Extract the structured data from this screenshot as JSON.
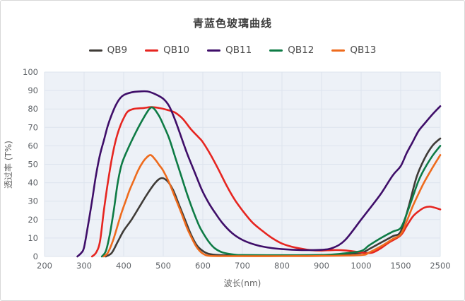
{
  "chart": {
    "title": "青蓝色玻璃曲线",
    "plot_bg_color": "#edf1f7",
    "grid_color": "#dde4ee",
    "text_color": "#5f6368"
  },
  "chart_data": {
    "type": "line",
    "title": "青蓝色玻璃曲线",
    "xlabel": "波长(nm)",
    "ylabel": "透过率 (T%)",
    "x_scale": "piecewise-linear-between-ticks",
    "x_ticks": [
      200,
      300,
      400,
      500,
      600,
      700,
      800,
      900,
      1000,
      1500,
      2500
    ],
    "ylim": [
      0,
      100
    ],
    "y_tick_step": 10,
    "grid": true,
    "legend_position": "top",
    "series": [
      {
        "name": "QB9",
        "color": "#3f3b37",
        "points": [
          [
            355,
            0
          ],
          [
            370,
            2
          ],
          [
            385,
            8
          ],
          [
            400,
            14
          ],
          [
            420,
            20
          ],
          [
            440,
            27
          ],
          [
            460,
            34
          ],
          [
            480,
            40
          ],
          [
            495,
            42.5
          ],
          [
            510,
            41
          ],
          [
            525,
            36
          ],
          [
            540,
            28
          ],
          [
            555,
            20
          ],
          [
            570,
            12
          ],
          [
            585,
            6
          ],
          [
            600,
            3
          ],
          [
            615,
            1.4
          ],
          [
            640,
            0.8
          ],
          [
            700,
            0.6
          ],
          [
            800,
            0.6
          ],
          [
            900,
            0.8
          ],
          [
            950,
            1.2
          ],
          [
            1000,
            2
          ],
          [
            1100,
            4
          ],
          [
            1250,
            7.5
          ],
          [
            1400,
            11
          ],
          [
            1500,
            13.5
          ],
          [
            1700,
            27
          ],
          [
            1900,
            43
          ],
          [
            2100,
            53
          ],
          [
            2300,
            60
          ],
          [
            2500,
            64
          ]
        ]
      },
      {
        "name": "QB10",
        "color": "#e62520",
        "points": [
          [
            320,
            0
          ],
          [
            330,
            2
          ],
          [
            340,
            8
          ],
          [
            350,
            25
          ],
          [
            360,
            40
          ],
          [
            370,
            53
          ],
          [
            380,
            63
          ],
          [
            390,
            70
          ],
          [
            400,
            75
          ],
          [
            410,
            78.5
          ],
          [
            425,
            80
          ],
          [
            450,
            80.5
          ],
          [
            470,
            81
          ],
          [
            490,
            80.5
          ],
          [
            510,
            79.5
          ],
          [
            530,
            78
          ],
          [
            550,
            74.5
          ],
          [
            570,
            69
          ],
          [
            590,
            64.5
          ],
          [
            600,
            62
          ],
          [
            620,
            55
          ],
          [
            640,
            47
          ],
          [
            660,
            38.5
          ],
          [
            680,
            31
          ],
          [
            700,
            25
          ],
          [
            725,
            18.5
          ],
          [
            750,
            14
          ],
          [
            775,
            10
          ],
          [
            800,
            7
          ],
          [
            825,
            5.3
          ],
          [
            850,
            4.2
          ],
          [
            875,
            3.4
          ],
          [
            900,
            3.2
          ],
          [
            930,
            3.5
          ],
          [
            960,
            3.3
          ],
          [
            1000,
            2.2
          ],
          [
            1060,
            1.8
          ],
          [
            1150,
            2.2
          ],
          [
            1250,
            4.5
          ],
          [
            1350,
            7.5
          ],
          [
            1500,
            11.5
          ],
          [
            1650,
            16.5
          ],
          [
            1800,
            21.5
          ],
          [
            1950,
            24.5
          ],
          [
            2100,
            26.5
          ],
          [
            2250,
            27
          ],
          [
            2400,
            26.2
          ],
          [
            2500,
            25.5
          ]
        ]
      },
      {
        "name": "QB11",
        "color": "#3f0e69",
        "points": [
          [
            283,
            0
          ],
          [
            293,
            2
          ],
          [
            300,
            5
          ],
          [
            310,
            17
          ],
          [
            320,
            30
          ],
          [
            330,
            44
          ],
          [
            340,
            55
          ],
          [
            350,
            63
          ],
          [
            360,
            71
          ],
          [
            370,
            77
          ],
          [
            380,
            82
          ],
          [
            390,
            85.5
          ],
          [
            400,
            87.5
          ],
          [
            420,
            89
          ],
          [
            440,
            89.5
          ],
          [
            460,
            89.5
          ],
          [
            480,
            88
          ],
          [
            500,
            85.5
          ],
          [
            515,
            81.5
          ],
          [
            530,
            74
          ],
          [
            545,
            65
          ],
          [
            560,
            56
          ],
          [
            575,
            48
          ],
          [
            590,
            40
          ],
          [
            600,
            35
          ],
          [
            615,
            29
          ],
          [
            630,
            24
          ],
          [
            650,
            18
          ],
          [
            675,
            12.5
          ],
          [
            700,
            9
          ],
          [
            730,
            6.5
          ],
          [
            760,
            5
          ],
          [
            800,
            4
          ],
          [
            850,
            3.5
          ],
          [
            900,
            3.6
          ],
          [
            930,
            4.8
          ],
          [
            960,
            9
          ],
          [
            1000,
            20
          ],
          [
            1100,
            25.5
          ],
          [
            1250,
            34
          ],
          [
            1400,
            44
          ],
          [
            1500,
            49
          ],
          [
            1650,
            56
          ],
          [
            1800,
            62
          ],
          [
            1950,
            68
          ],
          [
            2100,
            72
          ],
          [
            2300,
            77
          ],
          [
            2500,
            81.5
          ]
        ]
      },
      {
        "name": "QB12",
        "color": "#0e7b45",
        "points": [
          [
            345,
            0
          ],
          [
            355,
            3
          ],
          [
            365,
            12
          ],
          [
            375,
            25
          ],
          [
            385,
            40
          ],
          [
            395,
            50
          ],
          [
            410,
            58
          ],
          [
            430,
            67
          ],
          [
            450,
            75
          ],
          [
            465,
            80
          ],
          [
            475,
            80.5
          ],
          [
            490,
            76
          ],
          [
            500,
            71.5
          ],
          [
            515,
            64
          ],
          [
            530,
            54
          ],
          [
            545,
            44
          ],
          [
            560,
            34
          ],
          [
            575,
            25
          ],
          [
            590,
            17
          ],
          [
            600,
            13
          ],
          [
            615,
            8
          ],
          [
            630,
            4.5
          ],
          [
            650,
            2.2
          ],
          [
            680,
            1
          ],
          [
            700,
            0.8
          ],
          [
            800,
            0.7
          ],
          [
            900,
            0.8
          ],
          [
            950,
            1.5
          ],
          [
            1000,
            3
          ],
          [
            1100,
            6
          ],
          [
            1250,
            10
          ],
          [
            1400,
            13.5
          ],
          [
            1500,
            15.5
          ],
          [
            1650,
            23
          ],
          [
            1800,
            32
          ],
          [
            1950,
            41
          ],
          [
            2100,
            47.5
          ],
          [
            2300,
            54.5
          ],
          [
            2500,
            60
          ]
        ]
      },
      {
        "name": "QB13",
        "color": "#ee6b1d",
        "points": [
          [
            350,
            0
          ],
          [
            360,
            2
          ],
          [
            372,
            8
          ],
          [
            385,
            17
          ],
          [
            395,
            24
          ],
          [
            405,
            30
          ],
          [
            415,
            36
          ],
          [
            425,
            41
          ],
          [
            435,
            46
          ],
          [
            445,
            50
          ],
          [
            455,
            53
          ],
          [
            468,
            55
          ],
          [
            480,
            52.5
          ],
          [
            490,
            49.5
          ],
          [
            500,
            46.5
          ],
          [
            515,
            40
          ],
          [
            530,
            32
          ],
          [
            545,
            24
          ],
          [
            560,
            15.5
          ],
          [
            572,
            10
          ],
          [
            583,
            5.5
          ],
          [
            593,
            2.8
          ],
          [
            603,
            1.2
          ],
          [
            615,
            0.4
          ],
          [
            650,
            0.2
          ],
          [
            800,
            0.2
          ],
          [
            900,
            0.3
          ],
          [
            1000,
            0.8
          ],
          [
            1100,
            2.2
          ],
          [
            1250,
            5.5
          ],
          [
            1400,
            9.5
          ],
          [
            1500,
            12
          ],
          [
            1650,
            19
          ],
          [
            1800,
            27
          ],
          [
            1950,
            34
          ],
          [
            2100,
            40.5
          ],
          [
            2300,
            48
          ],
          [
            2500,
            55
          ]
        ]
      }
    ]
  }
}
